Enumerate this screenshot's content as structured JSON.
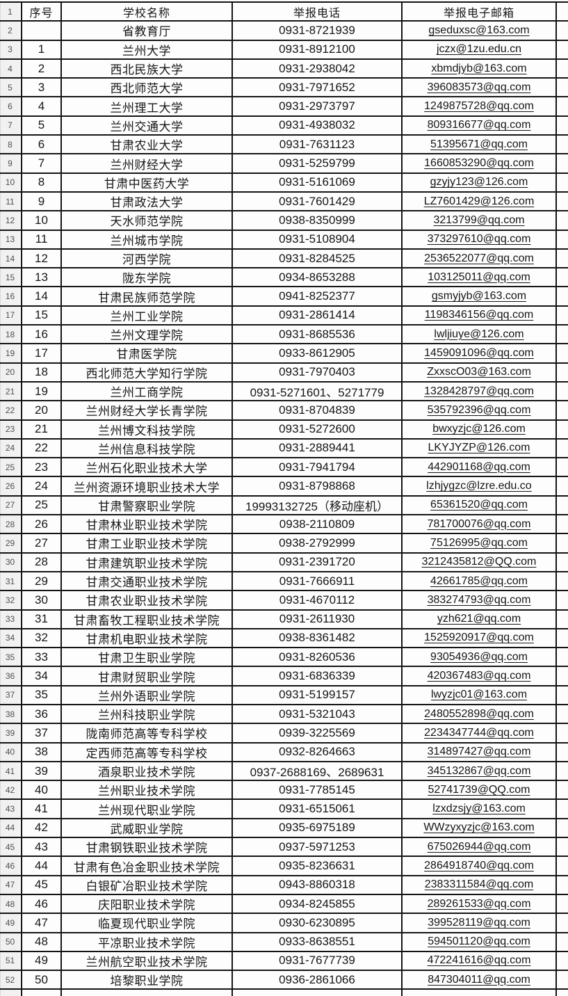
{
  "table": {
    "header": {
      "gutter": "1",
      "seq": "序号",
      "school": "学校名称",
      "phone": "举报电话",
      "email": "举报电子邮箱"
    },
    "rows": [
      {
        "gutter": "2",
        "seq": "",
        "school": "省教育厅",
        "phone": "0931-8721939",
        "email": "gseduxsc@163.com"
      },
      {
        "gutter": "3",
        "seq": "1",
        "school": "兰州大学",
        "phone": "0931-8912100",
        "email": "jczx@1zu.edu.cn"
      },
      {
        "gutter": "4",
        "seq": "2",
        "school": "西北民族大学",
        "phone": "0931-2938042",
        "email": "xbmdjyb@163.com"
      },
      {
        "gutter": "5",
        "seq": "3",
        "school": "西北师范大学",
        "phone": "0931-7971652",
        "email": "396083573@qq.com"
      },
      {
        "gutter": "6",
        "seq": "4",
        "school": "兰州理工大学",
        "phone": "0931-2973797",
        "email": "1249875728@qq.com"
      },
      {
        "gutter": "7",
        "seq": "5",
        "school": "兰州交通大学",
        "phone": "0931-4938032",
        "email": "809316677@qq.com"
      },
      {
        "gutter": "8",
        "seq": "6",
        "school": "甘肃农业大学",
        "phone": "0931-7631123",
        "email": "51395671@qq.com"
      },
      {
        "gutter": "9",
        "seq": "7",
        "school": "兰州财经大学",
        "phone": "0931-5259799",
        "email": "1660853290@qq.com"
      },
      {
        "gutter": "10",
        "seq": "8",
        "school": "甘肃中医药大学",
        "phone": "0931-5161069",
        "email": "gzyjy123@126.com"
      },
      {
        "gutter": "11",
        "seq": "9",
        "school": "甘肃政法大学",
        "phone": "0931-7601429",
        "email": "LZ7601429@126.com"
      },
      {
        "gutter": "12",
        "seq": "10",
        "school": "天水师范学院",
        "phone": "0938-8350999",
        "email": "3213799@qq.com"
      },
      {
        "gutter": "13",
        "seq": "11",
        "school": "兰州城市学院",
        "phone": "0931-5108904",
        "email": "373297610@qq.com"
      },
      {
        "gutter": "14",
        "seq": "12",
        "school": "河西学院",
        "phone": "0931-8284525",
        "email": "2536522077@qq.com"
      },
      {
        "gutter": "15",
        "seq": "13",
        "school": "陇东学院",
        "phone": "0934-8653288",
        "email": "103125011@qq.com"
      },
      {
        "gutter": "16",
        "seq": "14",
        "school": "甘肃民族师范学院",
        "phone": "0941-8252377",
        "email": "gsmyjyb@163.com"
      },
      {
        "gutter": "17",
        "seq": "15",
        "school": "兰州工业学院",
        "phone": "0931-2861414",
        "email": "1198346156@qq.com"
      },
      {
        "gutter": "18",
        "seq": "16",
        "school": "兰州文理学院",
        "phone": "0931-8685536",
        "email": "lwljiuye@126.com"
      },
      {
        "gutter": "19",
        "seq": "17",
        "school": "甘肃医学院",
        "phone": "0933-8612905",
        "email": "1459091096@qq.com"
      },
      {
        "gutter": "20",
        "seq": "18",
        "school": "西北师范大学知行学院",
        "phone": "0931-7970403",
        "email": "ZxxscO03@163.com"
      },
      {
        "gutter": "21",
        "seq": "19",
        "school": "兰州工商学院",
        "phone": "0931-5271601、5271779",
        "email": "1328428797@qq.com"
      },
      {
        "gutter": "22",
        "seq": "20",
        "school": "兰州财经大学长青学院",
        "phone": "0931-8704839",
        "email": "535792396@qq.com"
      },
      {
        "gutter": "23",
        "seq": "21",
        "school": "兰州博文科技学院",
        "phone": "0931-5272600",
        "email": "bwxyzjc@126.com"
      },
      {
        "gutter": "24",
        "seq": "22",
        "school": "兰州信息科技学院",
        "phone": "0931-2889441",
        "email": "LKYJYZP@126.com"
      },
      {
        "gutter": "25",
        "seq": "23",
        "school": "兰州石化职业技术大学",
        "phone": "0931-7941794",
        "email": "442901168@qq.com"
      },
      {
        "gutter": "26",
        "seq": "24",
        "school": "兰州资源环境职业技术大学",
        "phone": "0931-8798868",
        "email": "lzhjygzc@lzre.edu.co"
      },
      {
        "gutter": "27",
        "seq": "25",
        "school": "甘肃警察职业学院",
        "phone": "19993132725（移动座机）",
        "email": "65361520@qq.com"
      },
      {
        "gutter": "28",
        "seq": "26",
        "school": "甘肃林业职业技术学院",
        "phone": "0938-2110809",
        "email": "781700076@qq.com"
      },
      {
        "gutter": "29",
        "seq": "27",
        "school": "甘肃工业职业技术学院",
        "phone": "0938-2792999",
        "email": "75126995@qq.com"
      },
      {
        "gutter": "30",
        "seq": "28",
        "school": "甘肃建筑职业技术学院",
        "phone": "0931-2391720",
        "email": "3212435812@QQ.com"
      },
      {
        "gutter": "31",
        "seq": "29",
        "school": "甘肃交通职业技术学院",
        "phone": "0931-7666911",
        "email": "42661785@qq.com"
      },
      {
        "gutter": "32",
        "seq": "30",
        "school": "甘肃农业职业技术学院",
        "phone": "0931-4670112",
        "email": "383274793@qq.com"
      },
      {
        "gutter": "33",
        "seq": "31",
        "school": "甘肃畜牧工程职业技术学院",
        "phone": "0931-2611930",
        "email": "yzh621@qq.com"
      },
      {
        "gutter": "34",
        "seq": "32",
        "school": "甘肃机电职业技术学院",
        "phone": "0938-8361482",
        "email": "1525920917@qq.com"
      },
      {
        "gutter": "35",
        "seq": "33",
        "school": "甘肃卫生职业学院",
        "phone": "0931-8260536",
        "email": "93054936@qq.com"
      },
      {
        "gutter": "36",
        "seq": "34",
        "school": "甘肃财贸职业学院",
        "phone": "0931-6836339",
        "email": "420367483@qq.com"
      },
      {
        "gutter": "37",
        "seq": "35",
        "school": "兰州外语职业学院",
        "phone": "0931-5199157",
        "email": "lwyzjc01@163.com"
      },
      {
        "gutter": "38",
        "seq": "36",
        "school": "兰州科技职业学院",
        "phone": "0931-5321043",
        "email": "2480552898@qq.com"
      },
      {
        "gutter": "39",
        "seq": "37",
        "school": "陇南师范高等专科学校",
        "phone": "0939-3225569",
        "email": "2234347744@qq.com"
      },
      {
        "gutter": "40",
        "seq": "38",
        "school": "定西师范高等专科学校",
        "phone": "0932-8264663",
        "email": "314897427@qq.com"
      },
      {
        "gutter": "41",
        "seq": "39",
        "school": "酒泉职业技术学院",
        "phone": "0937-2688169、2689631",
        "email": "345132867@qq.com"
      },
      {
        "gutter": "42",
        "seq": "40",
        "school": "兰州职业技术学院",
        "phone": "0931-7785145",
        "email": "52741739@QQ.com"
      },
      {
        "gutter": "43",
        "seq": "41",
        "school": "兰州现代职业学院",
        "phone": "0931-6515061",
        "email": "lzxdzsjy@163.com"
      },
      {
        "gutter": "44",
        "seq": "42",
        "school": "武威职业学院",
        "phone": "0935-6975189",
        "email": "WWzyxyzjc@163.com"
      },
      {
        "gutter": "45",
        "seq": "43",
        "school": "甘肃钢铁职业技术学院",
        "phone": "0937-5971253",
        "email": "675026944@qq.com"
      },
      {
        "gutter": "46",
        "seq": "44",
        "school": "甘肃有色冶金职业技术学院",
        "phone": "0935-8236631",
        "email": "2864918740@qq.com"
      },
      {
        "gutter": "47",
        "seq": "45",
        "school": "白银矿冶职业技术学院",
        "phone": "0943-8860318",
        "email": "2383311584@qq.com"
      },
      {
        "gutter": "48",
        "seq": "46",
        "school": "庆阳职业技术学院",
        "phone": "0934-8245855",
        "email": "289261533@qq.com"
      },
      {
        "gutter": "49",
        "seq": "47",
        "school": "临夏现代职业学院",
        "phone": "0930-6230895",
        "email": "399528119@qq.com"
      },
      {
        "gutter": "50",
        "seq": "48",
        "school": "平凉职业技术学院",
        "phone": "0933-8638551",
        "email": "594501120@qq.com"
      },
      {
        "gutter": "51",
        "seq": "49",
        "school": "兰州航空职业技术学院",
        "phone": "0931-7677739",
        "email": "472241616@qq.com"
      },
      {
        "gutter": "52",
        "seq": "50",
        "school": "培黎职业学院",
        "phone": "0936-2861066",
        "email": "847304011@qq.com"
      }
    ]
  }
}
